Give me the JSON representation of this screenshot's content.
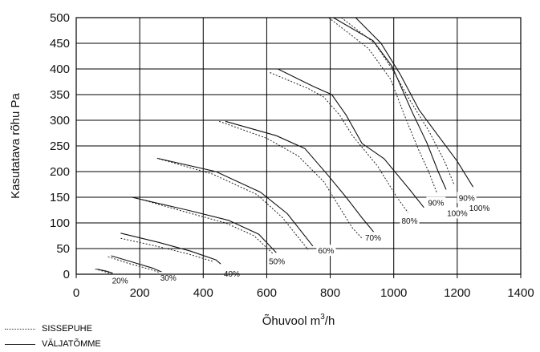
{
  "chart_data": {
    "type": "line",
    "xlabel_main": "Õhuvool m",
    "xlabel_sup": "3",
    "xlabel_tail": "/h",
    "ylabel": "Kasutatava rõhu Pa",
    "xlim": [
      0,
      1400
    ],
    "ylim": [
      0,
      500
    ],
    "x_ticks": [
      0,
      200,
      400,
      600,
      800,
      1000,
      1200,
      1400
    ],
    "y_ticks": [
      0,
      50,
      100,
      150,
      200,
      250,
      300,
      350,
      400,
      450,
      500
    ],
    "grid": true,
    "legend": [
      {
        "label": "SISSEPUHE",
        "style": "dotted"
      },
      {
        "label": "VÄLJATÕMME",
        "style": "solid"
      }
    ],
    "series": [
      {
        "label": "20%",
        "supply": [
          [
            60,
            10
          ],
          [
            90,
            5
          ],
          [
            110,
            1
          ]
        ],
        "exhaust": [
          [
            65,
            10
          ],
          [
            95,
            6
          ],
          [
            115,
            2
          ]
        ]
      },
      {
        "label": "30%",
        "supply": [
          [
            100,
            34
          ],
          [
            160,
            22
          ],
          [
            230,
            10
          ],
          [
            265,
            3
          ]
        ],
        "exhaust": [
          [
            110,
            36
          ],
          [
            175,
            24
          ],
          [
            240,
            12
          ],
          [
            270,
            4
          ]
        ]
      },
      {
        "label": "40%",
        "supply": [
          [
            140,
            70
          ],
          [
            250,
            55
          ],
          [
            350,
            40
          ],
          [
            430,
            25
          ]
        ],
        "exhaust": [
          [
            140,
            80
          ],
          [
            260,
            62
          ],
          [
            360,
            45
          ],
          [
            440,
            28
          ],
          [
            455,
            20
          ]
        ]
      },
      {
        "label": "50%",
        "supply": [
          [
            180,
            150
          ],
          [
            340,
            122
          ],
          [
            470,
            100
          ],
          [
            560,
            75
          ],
          [
            620,
            40
          ]
        ],
        "exhaust": [
          [
            175,
            150
          ],
          [
            350,
            125
          ],
          [
            480,
            105
          ],
          [
            575,
            78
          ],
          [
            630,
            42
          ]
        ]
      },
      {
        "label": "60%",
        "supply": [
          [
            260,
            225
          ],
          [
            430,
            195
          ],
          [
            570,
            155
          ],
          [
            650,
            110
          ],
          [
            730,
            48
          ]
        ],
        "exhaust": [
          [
            255,
            226
          ],
          [
            440,
            200
          ],
          [
            580,
            160
          ],
          [
            665,
            118
          ],
          [
            745,
            55
          ]
        ]
      },
      {
        "label": "70%",
        "supply": [
          [
            450,
            298
          ],
          [
            600,
            265
          ],
          [
            700,
            230
          ],
          [
            780,
            180
          ],
          [
            830,
            130
          ],
          [
            870,
            90
          ],
          [
            900,
            70
          ]
        ],
        "exhaust": [
          [
            470,
            298
          ],
          [
            630,
            270
          ],
          [
            720,
            245
          ],
          [
            790,
            195
          ],
          [
            850,
            150
          ],
          [
            900,
            110
          ],
          [
            940,
            80
          ]
        ]
      },
      {
        "label": "80%",
        "supply": [
          [
            610,
            393
          ],
          [
            730,
            362
          ],
          [
            780,
            345
          ],
          [
            830,
            310
          ],
          [
            870,
            270
          ],
          [
            950,
            210
          ],
          [
            1010,
            150
          ],
          [
            1045,
            120
          ]
        ],
        "exhaust": [
          [
            635,
            400
          ],
          [
            750,
            365
          ],
          [
            805,
            350
          ],
          [
            850,
            310
          ],
          [
            900,
            255
          ],
          [
            970,
            225
          ],
          [
            1050,
            165
          ],
          [
            1095,
            130
          ]
        ]
      },
      {
        "label": "90%",
        "supply": [
          [
            795,
            500
          ],
          [
            920,
            440
          ],
          [
            990,
            380
          ],
          [
            1040,
            300
          ],
          [
            1080,
            240
          ],
          [
            1110,
            200
          ],
          [
            1135,
            160
          ]
        ],
        "exhaust": [
          [
            810,
            500
          ],
          [
            935,
            455
          ],
          [
            995,
            405
          ],
          [
            1055,
            320
          ],
          [
            1105,
            255
          ],
          [
            1140,
            200
          ],
          [
            1165,
            165
          ]
        ]
      },
      {
        "label": "100%",
        "supply": [
          [
            835,
            500
          ],
          [
            940,
            450
          ],
          [
            995,
            400
          ],
          [
            1050,
            340
          ],
          [
            1110,
            280
          ],
          [
            1160,
            220
          ],
          [
            1190,
            175
          ]
        ],
        "exhaust": [
          [
            880,
            500
          ],
          [
            960,
            450
          ],
          [
            1020,
            390
          ],
          [
            1080,
            320
          ],
          [
            1140,
            270
          ],
          [
            1200,
            220
          ],
          [
            1250,
            170
          ]
        ]
      }
    ],
    "curve_labels": [
      {
        "text": "20%",
        "x": 138,
        "y": -13
      },
      {
        "text": "30%",
        "x": 290,
        "y": -8
      },
      {
        "text": "40%",
        "x": 490,
        "y": 0
      },
      {
        "text": "50%",
        "x": 632,
        "y": 24
      },
      {
        "text": "60%",
        "x": 787,
        "y": 45
      },
      {
        "text": "70%",
        "x": 935,
        "y": 70
      },
      {
        "text": "80%",
        "x": 1050,
        "y": 103
      },
      {
        "text": "90%",
        "x": 1133,
        "y": 138
      },
      {
        "text": "100%",
        "x": 1200,
        "y": 118
      },
      {
        "text": "90%",
        "x": 1230,
        "y": 148
      },
      {
        "text": "100%",
        "x": 1270,
        "y": 128
      }
    ]
  }
}
